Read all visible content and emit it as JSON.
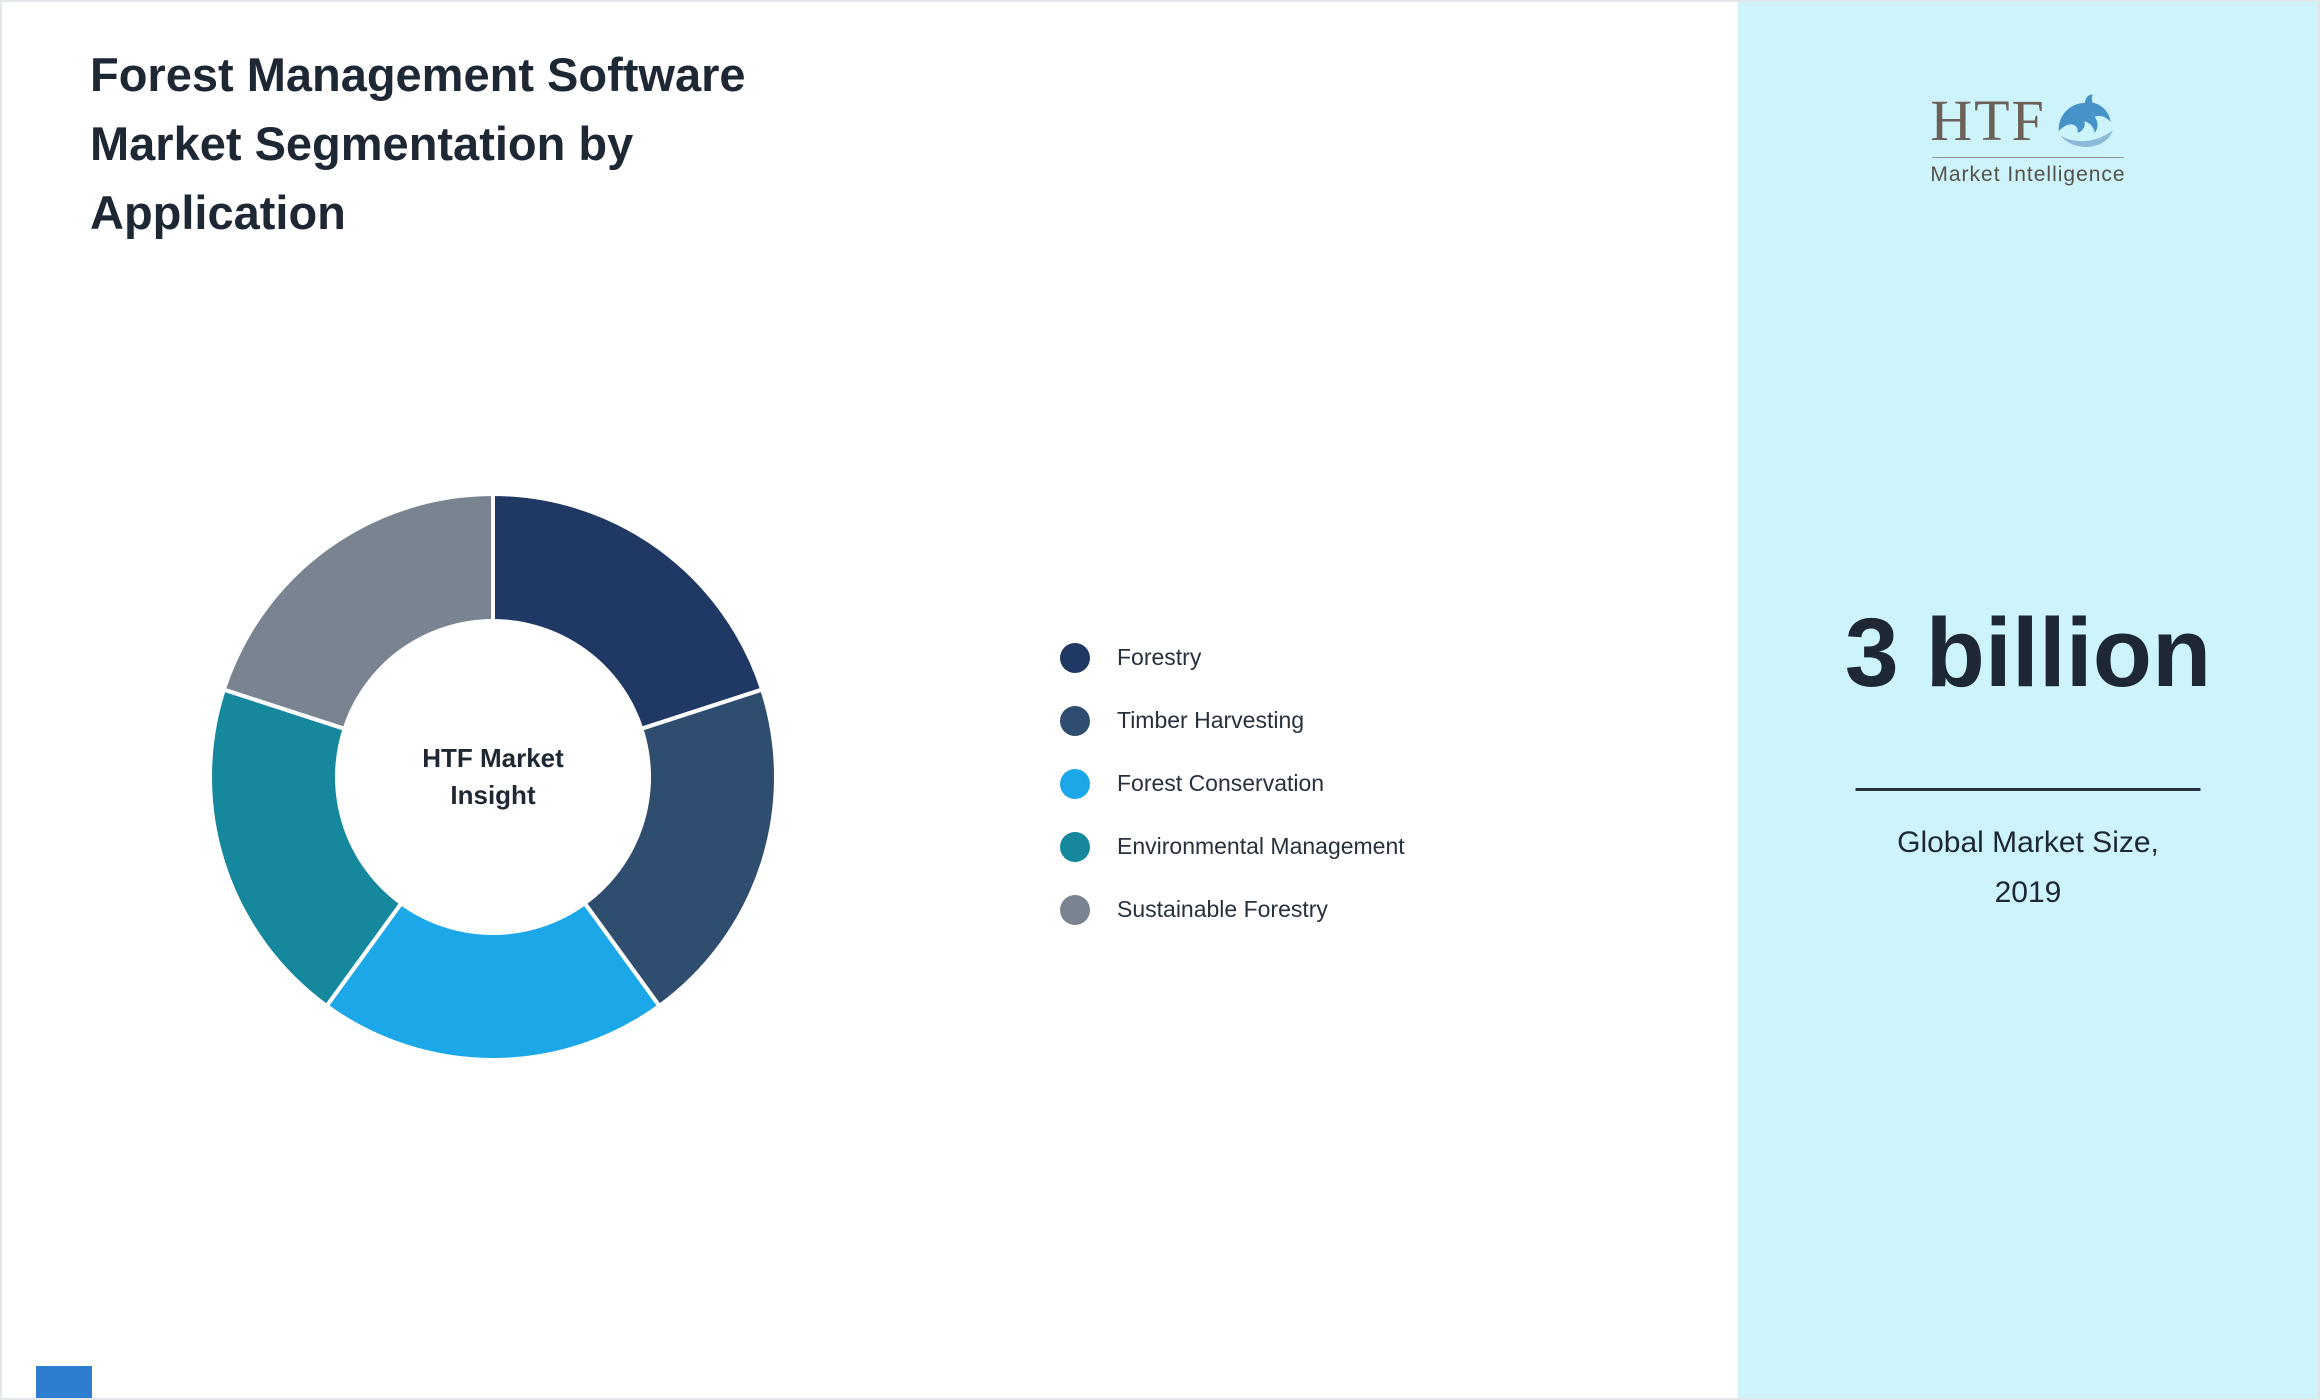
{
  "header": {
    "title_lines": [
      "Forest Management Software",
      "Market Segmentation by",
      "Application"
    ]
  },
  "chart_data": {
    "type": "pie",
    "variant": "donut",
    "title": "Forest Management Software Market Segmentation by Application",
    "center_label_lines": [
      "HTF Market",
      "Insight"
    ],
    "legend_position": "right",
    "segments": [
      {
        "label": "Forestry",
        "value": 20,
        "color": "#1F3864"
      },
      {
        "label": "Timber Harvesting",
        "value": 20,
        "color": "#2F4D6E"
      },
      {
        "label": "Forest Conservation",
        "value": 20,
        "color": "#1BA7E8"
      },
      {
        "label": "Environmental Management",
        "value": 20,
        "color": "#16889E"
      },
      {
        "label": "Sustainable Forestry",
        "value": 20,
        "color": "#7A8490"
      }
    ]
  },
  "sidebar": {
    "background": "#CDF3FB",
    "logo": {
      "text": "HTF",
      "subtext": "Market Intelligence",
      "icon": "dolphin-splash-icon"
    },
    "stat_value": "3 billion",
    "caption_lines": [
      "Global Market Size,",
      "2019"
    ]
  },
  "accents": {
    "bottom_left_bar_color": "#2D7DD2"
  }
}
